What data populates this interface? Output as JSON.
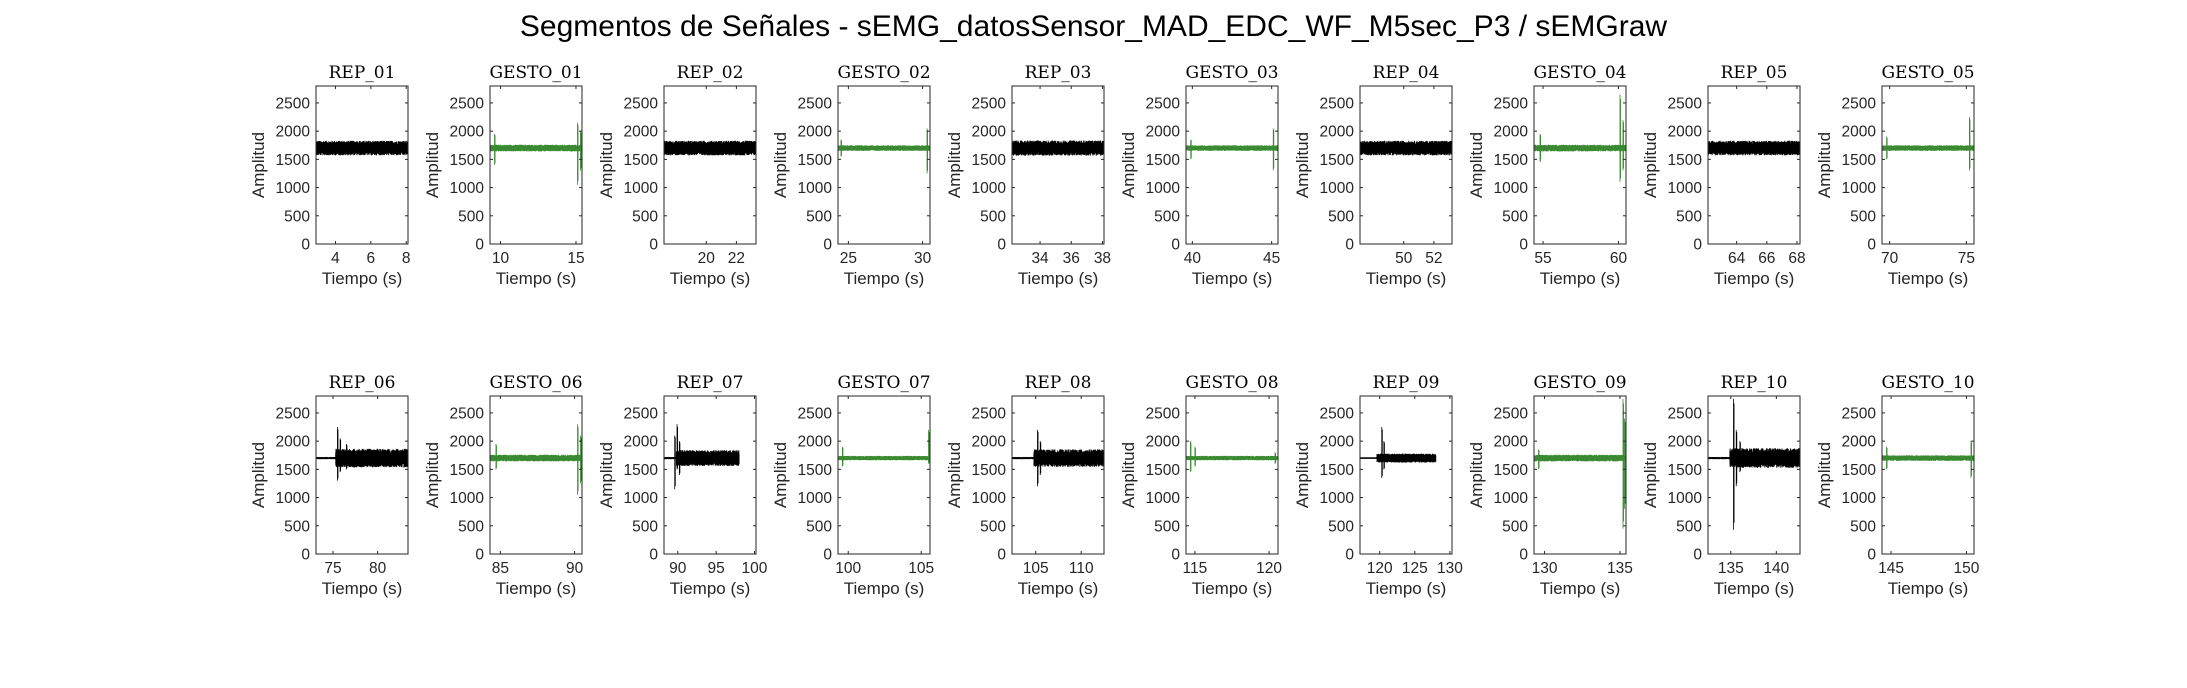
{
  "title": "Segmentos de Señales - sEMG_datosSensor_MAD_EDC_WF_M5sec_P3 / sEMGraw",
  "colors": {
    "rep": "#000000",
    "gesto": "#3a8a32",
    "axis": "#262626",
    "background": "#ffffff"
  },
  "chart_data": [
    {
      "type": "line",
      "title": "REP_01",
      "xlabel": "Tiempo (s)",
      "ylabel": "Amplitud",
      "xlim": [
        2.9,
        8.1
      ],
      "ylim": [
        0,
        2800
      ],
      "xticks": [
        4,
        6,
        8
      ],
      "yticks": [
        0,
        500,
        1000,
        1500,
        2000,
        2500
      ],
      "series": [
        {
          "color": "#000000",
          "x": [
            2.9,
            8.1
          ],
          "baseline": 1700,
          "band": [
            1580,
            1840
          ],
          "spikes": []
        }
      ]
    },
    {
      "type": "line",
      "title": "GESTO_01",
      "xlabel": "Tiempo (s)",
      "ylabel": "Amplitud",
      "xlim": [
        9.3,
        15.4
      ],
      "ylim": [
        0,
        2800
      ],
      "xticks": [
        10,
        15
      ],
      "yticks": [
        0,
        500,
        1000,
        1500,
        2000,
        2500
      ],
      "series": [
        {
          "color": "#3a8a32",
          "x": [
            9.3,
            15.4
          ],
          "baseline": 1700,
          "band": [
            1640,
            1760
          ],
          "spikes": [
            [
              9.6,
              1950,
              1400
            ],
            [
              15.1,
              2150,
              1050
            ],
            [
              15.3,
              2000,
              1300
            ]
          ]
        }
      ]
    },
    {
      "type": "line",
      "title": "REP_02",
      "xlabel": "Tiempo (s)",
      "ylabel": "Amplitud",
      "xlim": [
        17.2,
        23.3
      ],
      "ylim": [
        0,
        2800
      ],
      "xticks": [
        20,
        22
      ],
      "yticks": [
        0,
        500,
        1000,
        1500,
        2000,
        2500
      ],
      "series": [
        {
          "color": "#000000",
          "x": [
            17.2,
            23.3
          ],
          "baseline": 1700,
          "band": [
            1580,
            1840
          ],
          "spikes": []
        }
      ]
    },
    {
      "type": "line",
      "title": "GESTO_02",
      "xlabel": "Tiempo (s)",
      "ylabel": "Amplitud",
      "xlim": [
        24.3,
        30.5
      ],
      "ylim": [
        0,
        2800
      ],
      "xticks": [
        25,
        30
      ],
      "yticks": [
        0,
        500,
        1000,
        1500,
        2000,
        2500
      ],
      "series": [
        {
          "color": "#3a8a32",
          "x": [
            24.3,
            30.5
          ],
          "baseline": 1700,
          "band": [
            1650,
            1750
          ],
          "spikes": [
            [
              24.5,
              1850,
              1550
            ],
            [
              30.3,
              2050,
              1250
            ]
          ]
        }
      ]
    },
    {
      "type": "line",
      "title": "REP_03",
      "xlabel": "Tiempo (s)",
      "ylabel": "Amplitud",
      "xlim": [
        32.2,
        38.1
      ],
      "ylim": [
        0,
        2800
      ],
      "xticks": [
        34,
        36,
        38
      ],
      "yticks": [
        0,
        500,
        1000,
        1500,
        2000,
        2500
      ],
      "series": [
        {
          "color": "#000000",
          "x": [
            32.2,
            38.1
          ],
          "baseline": 1700,
          "band": [
            1580,
            1850
          ],
          "spikes": []
        }
      ]
    },
    {
      "type": "line",
      "title": "GESTO_03",
      "xlabel": "Tiempo (s)",
      "ylabel": "Amplitud",
      "xlim": [
        39.6,
        45.4
      ],
      "ylim": [
        0,
        2800
      ],
      "xticks": [
        40,
        45
      ],
      "yticks": [
        0,
        500,
        1000,
        1500,
        2000,
        2500
      ],
      "series": [
        {
          "color": "#3a8a32",
          "x": [
            39.6,
            45.4
          ],
          "baseline": 1700,
          "band": [
            1650,
            1750
          ],
          "spikes": [
            [
              39.9,
              1850,
              1500
            ],
            [
              45.1,
              2050,
              1300
            ]
          ]
        }
      ]
    },
    {
      "type": "line",
      "title": "REP_04",
      "xlabel": "Tiempo (s)",
      "ylabel": "Amplitud",
      "xlim": [
        47.1,
        53.2
      ],
      "ylim": [
        0,
        2800
      ],
      "xticks": [
        50,
        52
      ],
      "yticks": [
        0,
        500,
        1000,
        1500,
        2000,
        2500
      ],
      "series": [
        {
          "color": "#000000",
          "x": [
            47.1,
            53.2
          ],
          "baseline": 1700,
          "band": [
            1580,
            1840
          ],
          "spikes": []
        }
      ]
    },
    {
      "type": "line",
      "title": "GESTO_04",
      "xlabel": "Tiempo (s)",
      "ylabel": "Amplitud",
      "xlim": [
        54.4,
        60.5
      ],
      "ylim": [
        0,
        2800
      ],
      "xticks": [
        55,
        60
      ],
      "yticks": [
        0,
        500,
        1000,
        1500,
        2000,
        2500
      ],
      "series": [
        {
          "color": "#3a8a32",
          "x": [
            54.4,
            60.5
          ],
          "baseline": 1700,
          "band": [
            1640,
            1760
          ],
          "spikes": [
            [
              54.8,
              1950,
              1450
            ],
            [
              60.1,
              2650,
              1100
            ],
            [
              60.3,
              2200,
              1300
            ]
          ]
        }
      ]
    },
    {
      "type": "line",
      "title": "REP_05",
      "xlabel": "Tiempo (s)",
      "ylabel": "Amplitud",
      "xlim": [
        62.1,
        68.2
      ],
      "ylim": [
        0,
        2800
      ],
      "xticks": [
        64,
        66,
        68
      ],
      "yticks": [
        0,
        500,
        1000,
        1500,
        2000,
        2500
      ],
      "series": [
        {
          "color": "#000000",
          "x": [
            62.1,
            68.2
          ],
          "baseline": 1700,
          "band": [
            1580,
            1840
          ],
          "spikes": []
        }
      ]
    },
    {
      "type": "line",
      "title": "GESTO_05",
      "xlabel": "Tiempo (s)",
      "ylabel": "Amplitud",
      "xlim": [
        69.5,
        75.5
      ],
      "ylim": [
        0,
        2800
      ],
      "xticks": [
        70,
        75
      ],
      "yticks": [
        0,
        500,
        1000,
        1500,
        2000,
        2500
      ],
      "series": [
        {
          "color": "#3a8a32",
          "x": [
            69.5,
            75.5
          ],
          "baseline": 1700,
          "band": [
            1650,
            1750
          ],
          "spikes": [
            [
              69.8,
              1900,
              1500
            ],
            [
              75.2,
              2250,
              1300
            ]
          ]
        }
      ]
    },
    {
      "type": "line",
      "title": "REP_06",
      "xlabel": "Tiempo (s)",
      "ylabel": "Amplitud",
      "xlim": [
        73.1,
        83.4
      ],
      "ylim": [
        0,
        2800
      ],
      "xticks": [
        75,
        80
      ],
      "yticks": [
        0,
        500,
        1000,
        1500,
        2000,
        2500
      ],
      "series": [
        {
          "color": "#000000",
          "x": [
            73.1,
            83.4
          ],
          "baseline": 1700,
          "band": [
            1680,
            1720
          ],
          "active": [
            [
              75.3,
              83.4,
              1550,
              1880
            ]
          ],
          "spikes": [
            [
              75.5,
              2250,
              1300
            ],
            [
              75.8,
              2050,
              1450
            ],
            [
              76.5,
              1950,
              1500
            ]
          ]
        }
      ]
    },
    {
      "type": "line",
      "title": "GESTO_06",
      "xlabel": "Tiempo (s)",
      "ylabel": "Amplitud",
      "xlim": [
        84.3,
        90.5
      ],
      "ylim": [
        0,
        2800
      ],
      "xticks": [
        85,
        90
      ],
      "yticks": [
        0,
        500,
        1000,
        1500,
        2000,
        2500
      ],
      "series": [
        {
          "color": "#3a8a32",
          "x": [
            84.3,
            90.5
          ],
          "baseline": 1700,
          "band": [
            1640,
            1760
          ],
          "spikes": [
            [
              84.7,
              1950,
              1500
            ],
            [
              90.2,
              2300,
              1050
            ],
            [
              90.4,
              2100,
              1250
            ]
          ]
        }
      ]
    },
    {
      "type": "line",
      "title": "REP_07",
      "xlabel": "Tiempo (s)",
      "ylabel": "Amplitud",
      "xlim": [
        88.2,
        100.2
      ],
      "ylim": [
        0,
        2800
      ],
      "xticks": [
        90,
        95,
        100
      ],
      "yticks": [
        0,
        500,
        1000,
        1500,
        2000,
        2500
      ],
      "series": [
        {
          "color": "#000000",
          "x": [
            88.2,
            98.0
          ],
          "baseline": 1700,
          "band": [
            1680,
            1720
          ],
          "active": [
            [
              89.8,
              98.0,
              1580,
              1860
            ]
          ],
          "spikes": [
            [
              89.6,
              2100,
              1150
            ],
            [
              89.9,
              2300,
              1500
            ],
            [
              90.2,
              2000,
              1400
            ]
          ]
        }
      ]
    },
    {
      "type": "line",
      "title": "GESTO_07",
      "xlabel": "Tiempo (s)",
      "ylabel": "Amplitud",
      "xlim": [
        99.3,
        105.6
      ],
      "ylim": [
        0,
        2800
      ],
      "xticks": [
        100,
        105
      ],
      "yticks": [
        0,
        500,
        1000,
        1500,
        2000,
        2500
      ],
      "series": [
        {
          "color": "#3a8a32",
          "x": [
            99.3,
            105.6
          ],
          "baseline": 1700,
          "band": [
            1660,
            1740
          ],
          "spikes": [
            [
              99.6,
              1900,
              1550
            ],
            [
              105.5,
              2200,
              1600
            ]
          ]
        }
      ]
    },
    {
      "type": "line",
      "title": "REP_08",
      "xlabel": "Tiempo (s)",
      "ylabel": "Amplitud",
      "xlim": [
        102.4,
        112.5
      ],
      "ylim": [
        0,
        2800
      ],
      "xticks": [
        105,
        110
      ],
      "yticks": [
        0,
        500,
        1000,
        1500,
        2000,
        2500
      ],
      "series": [
        {
          "color": "#000000",
          "x": [
            102.4,
            112.5
          ],
          "baseline": 1700,
          "band": [
            1680,
            1720
          ],
          "active": [
            [
              104.8,
              112.5,
              1560,
              1870
            ]
          ],
          "spikes": [
            [
              105.2,
              2200,
              1200
            ],
            [
              105.5,
              2000,
              1400
            ]
          ]
        }
      ]
    },
    {
      "type": "line",
      "title": "GESTO_08",
      "xlabel": "Tiempo (s)",
      "ylabel": "Amplitud",
      "xlim": [
        114.4,
        120.6
      ],
      "ylim": [
        0,
        2800
      ],
      "xticks": [
        115,
        120
      ],
      "yticks": [
        0,
        500,
        1000,
        1500,
        2000,
        2500
      ],
      "series": [
        {
          "color": "#3a8a32",
          "x": [
            114.4,
            120.6
          ],
          "baseline": 1700,
          "band": [
            1660,
            1740
          ],
          "spikes": [
            [
              114.7,
              2000,
              1450
            ],
            [
              115.0,
              1900,
              1550
            ],
            [
              120.4,
              1800,
              1600
            ]
          ]
        }
      ]
    },
    {
      "type": "line",
      "title": "REP_09",
      "xlabel": "Tiempo (s)",
      "ylabel": "Amplitud",
      "xlim": [
        117.2,
        130.3
      ],
      "ylim": [
        0,
        2800
      ],
      "xticks": [
        120,
        125,
        130
      ],
      "yticks": [
        0,
        500,
        1000,
        1500,
        2000,
        2500
      ],
      "series": [
        {
          "color": "#000000",
          "x": [
            117.2,
            128.0
          ],
          "baseline": 1700,
          "band": [
            1685,
            1715
          ],
          "active": [
            [
              119.6,
              128.0,
              1630,
              1790
            ]
          ],
          "spikes": [
            [
              120.3,
              2250,
              1350
            ],
            [
              120.6,
              2000,
              1500
            ]
          ]
        }
      ]
    },
    {
      "type": "line",
      "title": "GESTO_09",
      "xlabel": "Tiempo (s)",
      "ylabel": "Amplitud",
      "xlim": [
        129.3,
        135.4
      ],
      "ylim": [
        0,
        2800
      ],
      "xticks": [
        130,
        135
      ],
      "yticks": [
        0,
        500,
        1000,
        1500,
        2000,
        2500
      ],
      "series": [
        {
          "color": "#3a8a32",
          "x": [
            129.3,
            135.4
          ],
          "baseline": 1700,
          "band": [
            1640,
            1760
          ],
          "spikes": [
            [
              129.6,
              1850,
              1500
            ],
            [
              135.2,
              2750,
              450
            ],
            [
              135.3,
              2400,
              800
            ]
          ]
        }
      ]
    },
    {
      "type": "line",
      "title": "REP_10",
      "xlabel": "Tiempo (s)",
      "ylabel": "Amplitud",
      "xlim": [
        132.5,
        142.6
      ],
      "ylim": [
        0,
        2800
      ],
      "xticks": [
        135,
        140
      ],
      "yticks": [
        0,
        500,
        1000,
        1500,
        2000,
        2500
      ],
      "series": [
        {
          "color": "#000000",
          "x": [
            132.5,
            142.6
          ],
          "baseline": 1700,
          "band": [
            1680,
            1720
          ],
          "active": [
            [
              134.9,
              142.6,
              1540,
              1890
            ]
          ],
          "spikes": [
            [
              135.3,
              2750,
              430
            ],
            [
              135.6,
              2200,
              1200
            ],
            [
              136.0,
              2000,
              1450
            ]
          ]
        }
      ]
    },
    {
      "type": "line",
      "title": "GESTO_10",
      "xlabel": "Tiempo (s)",
      "ylabel": "Amplitud",
      "xlim": [
        144.4,
        150.5
      ],
      "ylim": [
        0,
        2800
      ],
      "xticks": [
        145,
        150
      ],
      "yticks": [
        0,
        500,
        1000,
        1500,
        2000,
        2500
      ],
      "series": [
        {
          "color": "#3a8a32",
          "x": [
            144.4,
            150.5
          ],
          "baseline": 1700,
          "band": [
            1650,
            1750
          ],
          "spikes": [
            [
              144.7,
              1900,
              1500
            ],
            [
              150.3,
              2000,
              1350
            ]
          ]
        }
      ]
    }
  ]
}
